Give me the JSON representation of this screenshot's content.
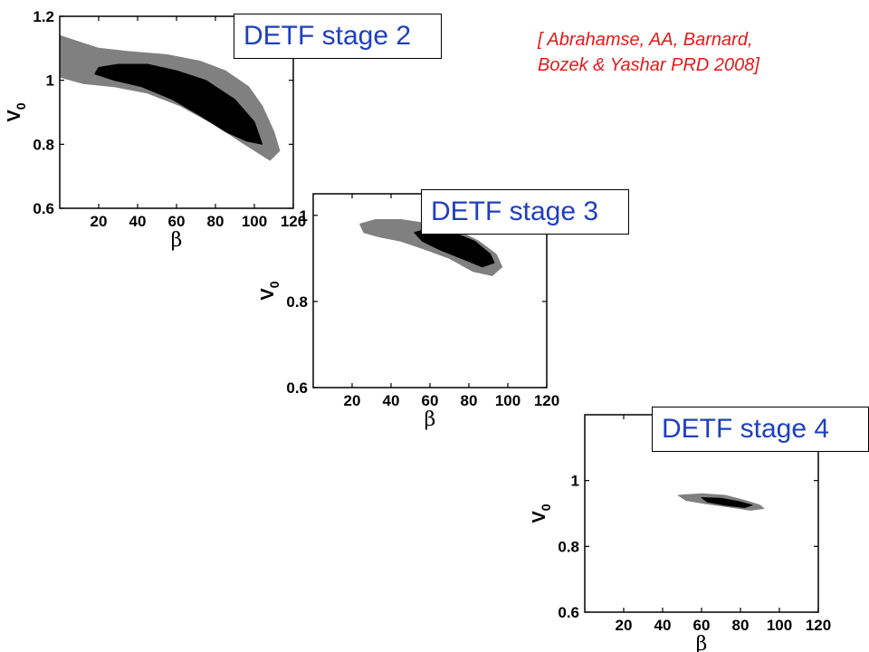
{
  "citation": {
    "line1": "[ Abrahamse, AA, Barnard,",
    "line2": "Bozek & Yashar PRD 2008]",
    "color": "#e41a1a"
  },
  "stage_label_color": "#1f3fbf",
  "contour_colors": {
    "inner": "#000000",
    "outer": "#808080"
  },
  "chart_data": [
    {
      "type": "contour",
      "label": "DETF stage 2",
      "xlabel": "β",
      "ylabel_main": "V",
      "ylabel_sub": "0",
      "xlim": [
        0,
        120
      ],
      "ylim": [
        0.6,
        1.2
      ],
      "xticks": [
        20,
        40,
        60,
        80,
        100,
        120
      ],
      "xtick_labels": [
        "20",
        "40",
        "60",
        "80",
        "100",
        "120"
      ],
      "yticks": [
        0.6,
        0.8,
        1,
        1.2
      ],
      "ytick_labels": [
        "0.6",
        "0.8",
        "1",
        "1.2"
      ],
      "regions": {
        "outer": [
          [
            0,
            1.14
          ],
          [
            10,
            1.12
          ],
          [
            20,
            1.1
          ],
          [
            35,
            1.09
          ],
          [
            55,
            1.08
          ],
          [
            72,
            1.06
          ],
          [
            85,
            1.03
          ],
          [
            97,
            0.98
          ],
          [
            104,
            0.92
          ],
          [
            110,
            0.84
          ],
          [
            113,
            0.78
          ],
          [
            108,
            0.75
          ],
          [
            95,
            0.8
          ],
          [
            80,
            0.86
          ],
          [
            62,
            0.92
          ],
          [
            45,
            0.96
          ],
          [
            28,
            0.98
          ],
          [
            12,
            0.99
          ],
          [
            0,
            1.01
          ]
        ],
        "inner": [
          [
            20,
            1.04
          ],
          [
            30,
            1.05
          ],
          [
            45,
            1.05
          ],
          [
            60,
            1.03
          ],
          [
            75,
            1.0
          ],
          [
            90,
            0.94
          ],
          [
            100,
            0.87
          ],
          [
            104,
            0.8
          ],
          [
            96,
            0.81
          ],
          [
            85,
            0.84
          ],
          [
            72,
            0.89
          ],
          [
            58,
            0.94
          ],
          [
            42,
            0.98
          ],
          [
            28,
            1.0
          ],
          [
            18,
            1.02
          ]
        ]
      }
    },
    {
      "type": "contour",
      "label": "DETF stage 3",
      "xlabel": "β",
      "ylabel_main": "V",
      "ylabel_sub": "0",
      "xlim": [
        0,
        120
      ],
      "ylim": [
        0.6,
        1.05
      ],
      "xticks": [
        20,
        40,
        60,
        80,
        100,
        120
      ],
      "xtick_labels": [
        "20",
        "40",
        "60",
        "80",
        "100",
        "120"
      ],
      "yticks": [
        0.6,
        0.8,
        1
      ],
      "ytick_labels": [
        "0.6",
        "0.8",
        "1"
      ],
      "regions": {
        "outer": [
          [
            24,
            0.98
          ],
          [
            32,
            0.99
          ],
          [
            45,
            0.99
          ],
          [
            60,
            0.98
          ],
          [
            72,
            0.97
          ],
          [
            85,
            0.94
          ],
          [
            94,
            0.91
          ],
          [
            97,
            0.88
          ],
          [
            92,
            0.86
          ],
          [
            82,
            0.87
          ],
          [
            70,
            0.9
          ],
          [
            58,
            0.92
          ],
          [
            45,
            0.94
          ],
          [
            34,
            0.95
          ],
          [
            26,
            0.96
          ]
        ],
        "inner": [
          [
            52,
            0.96
          ],
          [
            60,
            0.97
          ],
          [
            72,
            0.96
          ],
          [
            83,
            0.94
          ],
          [
            91,
            0.91
          ],
          [
            93,
            0.89
          ],
          [
            87,
            0.88
          ],
          [
            76,
            0.9
          ],
          [
            65,
            0.92
          ],
          [
            56,
            0.94
          ]
        ]
      }
    },
    {
      "type": "contour",
      "label": "DETF stage 4",
      "xlabel": "β",
      "ylabel_main": "V",
      "ylabel_sub": "0",
      "xlim": [
        0,
        120
      ],
      "ylim": [
        0.6,
        1.2
      ],
      "xticks": [
        20,
        40,
        60,
        80,
        100,
        120
      ],
      "xtick_labels": [
        "20",
        "40",
        "60",
        "80",
        "100",
        "120"
      ],
      "yticks": [
        0.6,
        0.8,
        1
      ],
      "ytick_labels": [
        "0.6",
        "0.8",
        "1"
      ],
      "regions": {
        "outer": [
          [
            48,
            0.955
          ],
          [
            60,
            0.96
          ],
          [
            72,
            0.955
          ],
          [
            82,
            0.94
          ],
          [
            90,
            0.925
          ],
          [
            92,
            0.915
          ],
          [
            85,
            0.91
          ],
          [
            74,
            0.92
          ],
          [
            62,
            0.93
          ],
          [
            52,
            0.94
          ]
        ],
        "inner": [
          [
            60,
            0.948
          ],
          [
            70,
            0.946
          ],
          [
            80,
            0.935
          ],
          [
            86,
            0.925
          ],
          [
            82,
            0.918
          ],
          [
            72,
            0.925
          ],
          [
            63,
            0.935
          ]
        ]
      }
    }
  ]
}
